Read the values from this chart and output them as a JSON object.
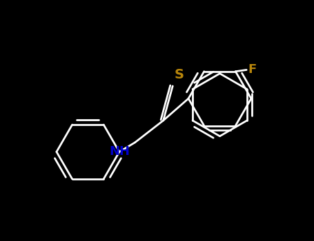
{
  "bg_color": "#000000",
  "bond_color": "#ffffff",
  "S_color": "#b8860b",
  "N_color": "#0000cd",
  "F_color": "#b8860b",
  "label_S": "S",
  "label_NH": "NH",
  "label_F": "F",
  "figsize": [
    4.55,
    3.5
  ],
  "dpi": 100
}
